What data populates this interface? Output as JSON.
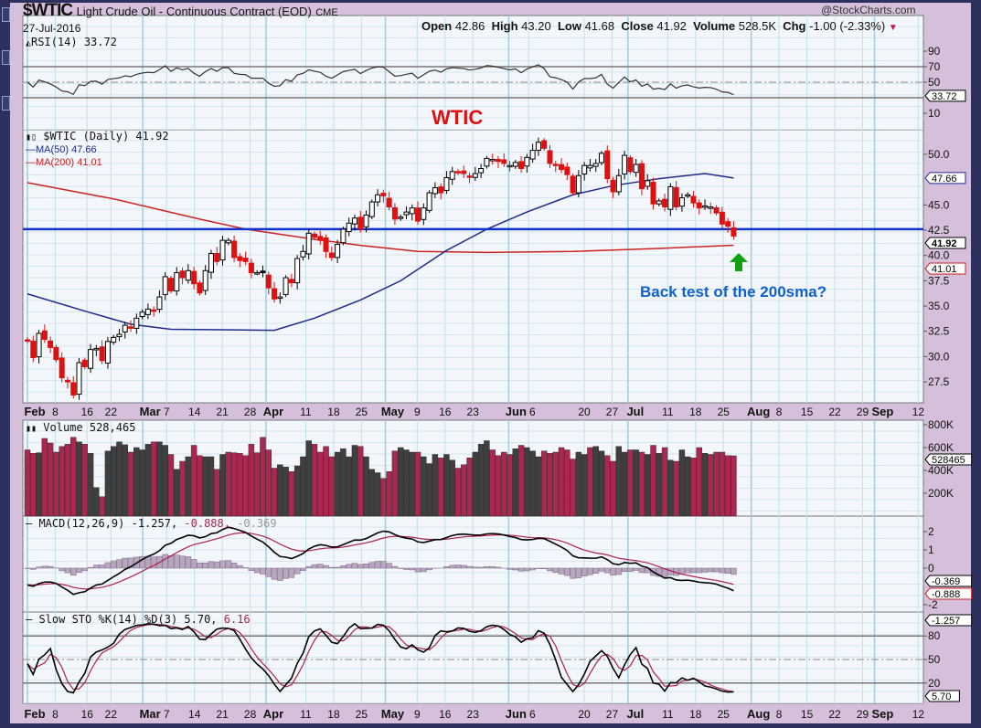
{
  "header": {
    "symbol": "$WTIC",
    "name": "Light Crude Oil - Continuous Contract (EOD)",
    "exchange": "CME",
    "date": "27-Jul-2016",
    "brand": "@StockCharts.com",
    "open_label": "Open",
    "open": "42.86",
    "high_label": "High",
    "high": "43.20",
    "low_label": "Low",
    "low": "41.68",
    "close_label": "Close",
    "close": "41.92",
    "volume_label": "Volume",
    "volume": "528.5K",
    "chg_label": "Chg",
    "chg": "-1.00 (-2.33%)",
    "chg_icon": "triangle-down-icon"
  },
  "legends": {
    "rsi": "RSI(14) 33.72",
    "price": "$WTIC (Daily) 41.92",
    "ma50": "MA(50) 47.66",
    "ma200": "MA(200) 41.01",
    "volume": "Volume 528,465",
    "macd_name": "MACD(12,26,9) -1.257,",
    "macd_signal": " -0.888,",
    "macd_hist": " -0.369",
    "sto_name": "Slow STO %K(14) %D(3) 5.70,",
    "sto_d": " 6.16"
  },
  "annotations": {
    "title": "WTIC",
    "note": "Back test of the 200sma?",
    "arrow_icon": "arrow-up-icon"
  },
  "colors": {
    "up": "#000000",
    "down": "#dd1111",
    "ma50": "#1f2a8a",
    "ma200": "#cc2222",
    "support": "#1030d0",
    "vol_up": "#3f3f3f",
    "vol_down": "#a8284f",
    "annotation_title": "#e01010",
    "annotation_note": "#1060d0",
    "arrow": "#10a010"
  },
  "chart_data": {
    "type": "candlestick",
    "title": "$WTIC Light Crude Oil - Continuous Contract (EOD)",
    "x_range": [
      "2016-02-01",
      "2016-09-12"
    ],
    "price_ylim": [
      25.5,
      52.5
    ],
    "price_ticks": [
      "50.0",
      "45.0",
      "42.5",
      "40.0",
      "37.5",
      "35.0",
      "32.5",
      "30.0",
      "27.5"
    ],
    "support_level": 42.6,
    "date_ticks": [
      {
        "label": "Feb",
        "day": 32,
        "month": true
      },
      {
        "label": "8",
        "day": 39
      },
      {
        "label": "16",
        "day": 47
      },
      {
        "label": "22",
        "day": 53
      },
      {
        "label": "Mar",
        "day": 61,
        "month": true
      },
      {
        "label": "7",
        "day": 67
      },
      {
        "label": "14",
        "day": 74
      },
      {
        "label": "21",
        "day": 81
      },
      {
        "label": "28",
        "day": 88
      },
      {
        "label": "Apr",
        "day": 92,
        "month": true
      },
      {
        "label": "11",
        "day": 102
      },
      {
        "label": "18",
        "day": 109
      },
      {
        "label": "25",
        "day": 116
      },
      {
        "label": "May",
        "day": 122,
        "month": true
      },
      {
        "label": "9",
        "day": 130
      },
      {
        "label": "16",
        "day": 137
      },
      {
        "label": "23",
        "day": 144
      },
      {
        "label": "Jun",
        "day": 153,
        "month": true
      },
      {
        "label": "6",
        "day": 158
      },
      {
        "label": "20",
        "day": 172
      },
      {
        "label": "27",
        "day": 179
      },
      {
        "label": "Jul",
        "day": 183,
        "month": true
      },
      {
        "label": "11",
        "day": 193
      },
      {
        "label": "18",
        "day": 200
      },
      {
        "label": "25",
        "day": 207
      },
      {
        "label": "Aug",
        "day": 214,
        "month": true
      },
      {
        "label": "8",
        "day": 221
      },
      {
        "label": "15",
        "day": 228
      },
      {
        "label": "22",
        "day": 235
      },
      {
        "label": "29",
        "day": 242
      },
      {
        "label": "Sep",
        "day": 245,
        "month": true
      },
      {
        "label": "12",
        "day": 256
      }
    ],
    "close": [
      31.6,
      29.9,
      32.3,
      31.7,
      30.9,
      29.7,
      27.9,
      27.5,
      26.2,
      29.4,
      29.0,
      30.7,
      30.8,
      29.6,
      31.5,
      31.9,
      32.2,
      33.1,
      32.8,
      33.8,
      34.4,
      34.7,
      34.6,
      35.9,
      37.9,
      36.5,
      38.3,
      37.8,
      38.5,
      37.2,
      36.3,
      38.5,
      40.2,
      39.4,
      41.5,
      41.5,
      39.8,
      39.5,
      39.4,
      38.3,
      38.3,
      38.3,
      36.8,
      35.7,
      35.9,
      37.8,
      37.3,
      39.7,
      40.4,
      42.2,
      41.8,
      41.5,
      40.4,
      39.8,
      41.1,
      42.6,
      43.2,
      43.7,
      42.6,
      44.0,
      45.3,
      46.0,
      45.9,
      44.8,
      43.6,
      43.8,
      44.3,
      44.7,
      43.4,
      44.7,
      46.2,
      46.7,
      46.2,
      47.7,
      48.3,
      48.2,
      48.1,
      47.8,
      48.1,
      48.6,
      49.6,
      49.5,
      49.3,
      49.1,
      48.9,
      49.2,
      48.6,
      49.7,
      50.4,
      51.2,
      50.6,
      49.1,
      48.9,
      48.5,
      48.0,
      46.2,
      47.9,
      48.9,
      48.9,
      49.1,
      50.1,
      47.6,
      46.3,
      47.9,
      49.9,
      48.3,
      49.0,
      46.6,
      47.4,
      45.1,
      45.4,
      44.8,
      46.8,
      44.8,
      45.7,
      46.0,
      45.2,
      44.7,
      44.9,
      44.8,
      44.2,
      43.1,
      42.9,
      41.92
    ],
    "ma50": [
      [
        0,
        36.2
      ],
      [
        10,
        34.5
      ],
      [
        18,
        33.2
      ],
      [
        25,
        32.7
      ],
      [
        43,
        32.6
      ],
      [
        50,
        33.8
      ],
      [
        58,
        35.6
      ],
      [
        65,
        37.5
      ],
      [
        73,
        40.5
      ],
      [
        80,
        42.6
      ],
      [
        87,
        44.3
      ],
      [
        95,
        46.0
      ],
      [
        102,
        46.9
      ],
      [
        110,
        47.6
      ],
      [
        118,
        48.1
      ],
      [
        123,
        47.66
      ]
    ],
    "ma200": [
      [
        0,
        47.2
      ],
      [
        15,
        45.6
      ],
      [
        30,
        43.6
      ],
      [
        38,
        42.6
      ],
      [
        50,
        41.6
      ],
      [
        58,
        41.0
      ],
      [
        68,
        40.4
      ],
      [
        80,
        40.3
      ],
      [
        95,
        40.4
      ],
      [
        110,
        40.7
      ],
      [
        123,
        41.01
      ]
    ],
    "volume_k": [
      580,
      550,
      555,
      680,
      640,
      560,
      610,
      630,
      690,
      650,
      630,
      550,
      250,
      170,
      570,
      610,
      650,
      625,
      560,
      600,
      580,
      630,
      650,
      650,
      620,
      540,
      410,
      480,
      520,
      620,
      530,
      520,
      520,
      410,
      540,
      560,
      555,
      550,
      530,
      630,
      555,
      690,
      580,
      420,
      450,
      430,
      390,
      440,
      520,
      660,
      630,
      560,
      610,
      520,
      560,
      590,
      520,
      620,
      610,
      520,
      410,
      380,
      330,
      390,
      570,
      600,
      580,
      560,
      560,
      520,
      460,
      540,
      510,
      540,
      490,
      420,
      450,
      510,
      560,
      630,
      660,
      580,
      530,
      560,
      540,
      590,
      620,
      600,
      570,
      520,
      570,
      550,
      560,
      600,
      580,
      500,
      560,
      540,
      600,
      610,
      570,
      530,
      480,
      610,
      560,
      580,
      580,
      560,
      540,
      620,
      550,
      600,
      490,
      480,
      580,
      520,
      510,
      600,
      550,
      540,
      560,
      560,
      530,
      528
    ],
    "rsi_ticks": [
      "90",
      "70",
      "50",
      "10"
    ],
    "volume_ticks": [
      "800K",
      "600K",
      "400K",
      "200K"
    ],
    "macd_ticks": [
      "2",
      "1",
      "0",
      "-2"
    ],
    "sto_ticks": [
      "80",
      "50",
      "20"
    ],
    "tags": {
      "rsi": "33.72",
      "ma50": "47.66",
      "close": "41.92",
      "ma200": "41.01",
      "volume": "528465",
      "macd_hist": "-0.369",
      "macd_signal": "-0.888",
      "macd": "-1.257",
      "sto": "5.70"
    }
  }
}
